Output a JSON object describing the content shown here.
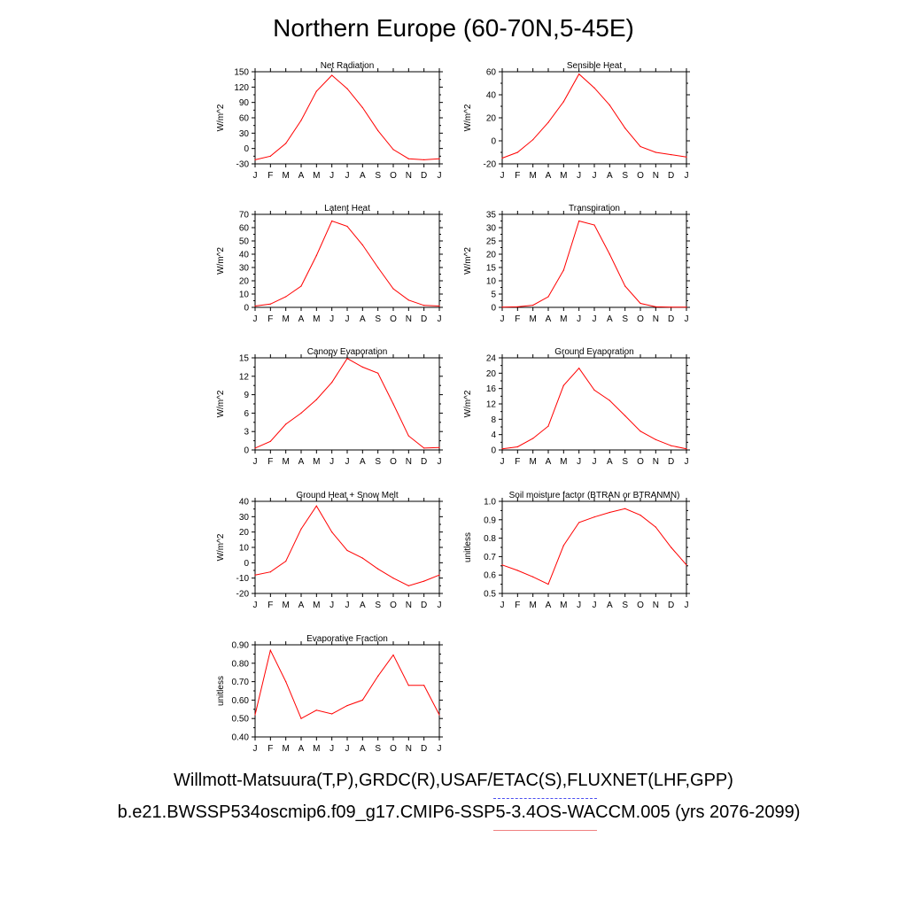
{
  "title": "Northern Europe (60-70N,5-45E)",
  "footer": {
    "line1": "Willmott-Matsuura(T,P),GRDC(R),USAF/ETAC(S),FLUXNET(LHF,GPP)",
    "line2": "b.e21.BWSSP534oscmip6.f09_g17.CMIP6-SSP5-3.4OS-WACCM.005 (yrs 2076-2099)"
  },
  "colors": {
    "series": "#ff0000",
    "axis": "#000000"
  },
  "chart_data": [
    {
      "type": "line",
      "title": "Net Radiation",
      "ylabel": "W/m^2",
      "categories": [
        "J",
        "F",
        "M",
        "A",
        "M",
        "J",
        "J",
        "A",
        "S",
        "O",
        "N",
        "D",
        "J"
      ],
      "ylim": [
        -30,
        150
      ],
      "yticks": [
        -30,
        0,
        30,
        60,
        90,
        120,
        150
      ],
      "ytick_labels": [
        "-30",
        "0",
        "30",
        "60",
        "90",
        "120",
        "150"
      ],
      "values": [
        -22,
        -15,
        10,
        55,
        112,
        143,
        117,
        80,
        35,
        -2,
        -20,
        -22,
        -20
      ]
    },
    {
      "type": "line",
      "title": "Sensible Heat",
      "ylabel": "W/m^2",
      "categories": [
        "J",
        "F",
        "M",
        "A",
        "M",
        "J",
        "J",
        "A",
        "S",
        "O",
        "N",
        "D",
        "J"
      ],
      "ylim": [
        -20,
        60
      ],
      "yticks": [
        -20,
        0,
        20,
        40,
        60
      ],
      "ytick_labels": [
        "-20",
        "0",
        "20",
        "40",
        "60"
      ],
      "values": [
        -15,
        -10,
        1,
        16,
        34,
        58,
        46,
        31,
        11,
        -5,
        -10,
        -12,
        -14
      ]
    },
    {
      "type": "line",
      "title": "Latent Heat",
      "ylabel": "W/m^2",
      "categories": [
        "J",
        "F",
        "M",
        "A",
        "M",
        "J",
        "J",
        "A",
        "S",
        "O",
        "N",
        "D",
        "J"
      ],
      "ylim": [
        0,
        70
      ],
      "yticks": [
        0,
        10,
        20,
        30,
        40,
        50,
        60,
        70
      ],
      "ytick_labels": [
        "0",
        "10",
        "20",
        "30",
        "40",
        "50",
        "60",
        "70"
      ],
      "values": [
        1,
        2.5,
        8,
        16,
        39,
        65,
        61,
        47,
        30,
        14,
        5.5,
        1.5,
        1
      ]
    },
    {
      "type": "line",
      "title": "Transpiration",
      "ylabel": "W/m^2",
      "categories": [
        "J",
        "F",
        "M",
        "A",
        "M",
        "J",
        "J",
        "A",
        "S",
        "O",
        "N",
        "D",
        "J"
      ],
      "ylim": [
        0,
        35
      ],
      "yticks": [
        0,
        5,
        10,
        15,
        20,
        25,
        30,
        35
      ],
      "ytick_labels": [
        "0",
        "5",
        "10",
        "15",
        "20",
        "25",
        "30",
        "35"
      ],
      "values": [
        0.1,
        0.2,
        0.8,
        4,
        14,
        32.5,
        31,
        20,
        8,
        1.5,
        0.2,
        0.1,
        0.1
      ]
    },
    {
      "type": "line",
      "title": "Canopy Evaporation",
      "ylabel": "W/m^2",
      "categories": [
        "J",
        "F",
        "M",
        "A",
        "M",
        "J",
        "J",
        "A",
        "S",
        "O",
        "N",
        "D",
        "J"
      ],
      "ylim": [
        0,
        15
      ],
      "yticks": [
        0,
        3,
        6,
        9,
        12,
        15
      ],
      "ytick_labels": [
        "0",
        "3",
        "6",
        "9",
        "12",
        "15"
      ],
      "values": [
        0.3,
        1.4,
        4.2,
        6,
        8.2,
        11,
        14.9,
        13.5,
        12.5,
        7.5,
        2.3,
        0.3,
        0.4
      ]
    },
    {
      "type": "line",
      "title": "Ground Evaporation",
      "ylabel": "W/m^2",
      "categories": [
        "J",
        "F",
        "M",
        "A",
        "M",
        "J",
        "J",
        "A",
        "S",
        "O",
        "N",
        "D",
        "J"
      ],
      "ylim": [
        0,
        24
      ],
      "yticks": [
        0,
        4,
        8,
        12,
        16,
        20,
        24
      ],
      "ytick_labels": [
        "0",
        "4",
        "8",
        "12",
        "16",
        "20",
        "24"
      ],
      "values": [
        0.3,
        0.8,
        3,
        6.2,
        16.8,
        21.3,
        15.6,
        12.9,
        8.9,
        4.9,
        2.7,
        1.1,
        0.3
      ]
    },
    {
      "type": "line",
      "title": "Ground Heat + Snow Melt",
      "ylabel": "W/m^2",
      "categories": [
        "J",
        "F",
        "M",
        "A",
        "M",
        "J",
        "J",
        "A",
        "S",
        "O",
        "N",
        "D",
        "J"
      ],
      "ylim": [
        -20,
        40
      ],
      "yticks": [
        -20,
        -10,
        0,
        10,
        20,
        30,
        40
      ],
      "ytick_labels": [
        "-20",
        "-10",
        "0",
        "10",
        "20",
        "30",
        "40"
      ],
      "values": [
        -8,
        -6,
        1,
        22,
        37,
        20,
        8,
        3,
        -4,
        -10,
        -15,
        -12,
        -8
      ]
    },
    {
      "type": "line",
      "title": "Soil moisture factor (BTRAN or BTRANMN)",
      "ylabel": "unitless",
      "categories": [
        "J",
        "F",
        "M",
        "A",
        "M",
        "J",
        "J",
        "A",
        "S",
        "O",
        "N",
        "D",
        "J"
      ],
      "ylim": [
        0.5,
        1.0
      ],
      "yticks": [
        0.5,
        0.6,
        0.7,
        0.8,
        0.9,
        1.0
      ],
      "ytick_labels": [
        "0.5",
        "0.6",
        "0.7",
        "0.8",
        "0.9",
        "1.0"
      ],
      "values": [
        0.655,
        0.625,
        0.59,
        0.55,
        0.76,
        0.885,
        0.915,
        0.94,
        0.96,
        0.925,
        0.86,
        0.75,
        0.655
      ]
    },
    {
      "type": "line",
      "title": "Evaporative Fraction",
      "ylabel": "unitless",
      "categories": [
        "J",
        "F",
        "M",
        "A",
        "M",
        "J",
        "J",
        "A",
        "S",
        "O",
        "N",
        "D",
        "J"
      ],
      "ylim": [
        0.4,
        0.9
      ],
      "yticks": [
        0.4,
        0.5,
        0.6,
        0.7,
        0.8,
        0.9
      ],
      "ytick_labels": [
        "0.40",
        "0.50",
        "0.60",
        "0.70",
        "0.80",
        "0.90"
      ],
      "values": [
        0.52,
        0.87,
        0.7,
        0.5,
        0.545,
        0.525,
        0.57,
        0.6,
        0.73,
        0.845,
        0.68,
        0.68,
        0.52
      ]
    }
  ]
}
